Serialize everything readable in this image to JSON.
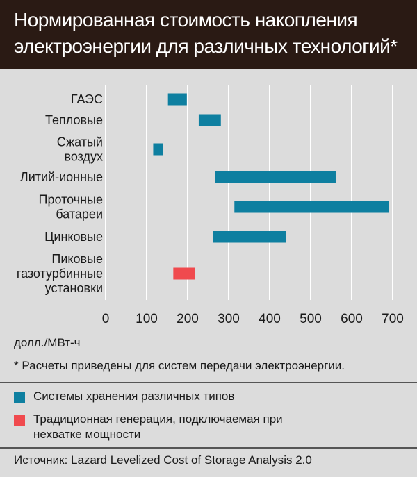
{
  "title_line1": "Нормированная стоимость накопления",
  "title_line2": "электроэнергии для различных технологий*",
  "axis_unit": "долл./МВт-ч",
  "footnote": "* Расчеты приведены для систем передачи электроэнергии.",
  "legend": [
    {
      "label": "Системы хранения различных типов",
      "color": "#0e7fa0"
    },
    {
      "label": "Традиционная генерация, подключаемая при нехватке мощности",
      "color": "#f04a4e"
    }
  ],
  "source": "Источник: Lazard Levelized Cost of Storage Analysis 2.0",
  "colors": {
    "header_bg": "#2a1a14",
    "storage": "#0e7fa0",
    "conventional": "#f04a4e",
    "background": "#dcdcdc"
  },
  "chart_data": {
    "type": "bar",
    "orientation": "horizontal-range",
    "xlim": [
      0,
      700
    ],
    "xticks": [
      0,
      100,
      200,
      300,
      400,
      500,
      600,
      700
    ],
    "xlabel": "долл./МВт-ч",
    "grid": true,
    "categories": [
      {
        "label": [
          "ГАЭС"
        ],
        "min": 152,
        "max": 198,
        "group": "storage"
      },
      {
        "label": [
          "Тепловые"
        ],
        "min": 227,
        "max": 281,
        "group": "storage"
      },
      {
        "label": [
          "Сжатый",
          "воздух"
        ],
        "min": 116,
        "max": 140,
        "group": "storage"
      },
      {
        "label": [
          "Литий-ионные"
        ],
        "min": 267,
        "max": 561,
        "group": "storage"
      },
      {
        "label": [
          "Проточные",
          "батареи"
        ],
        "min": 314,
        "max": 690,
        "group": "storage"
      },
      {
        "label": [
          "Цинковые"
        ],
        "min": 262,
        "max": 439,
        "group": "storage"
      },
      {
        "label": [
          "Пиковые",
          "газотурбинные",
          "установки"
        ],
        "min": 165,
        "max": 218,
        "group": "conventional"
      }
    ]
  }
}
